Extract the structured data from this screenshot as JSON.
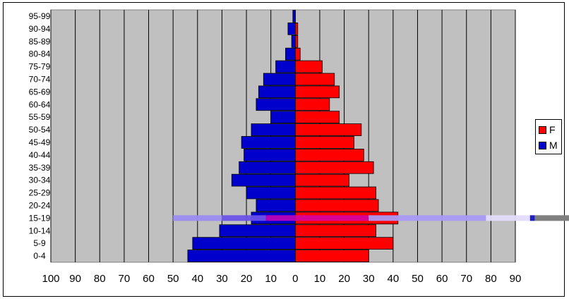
{
  "chart_data": {
    "type": "bar",
    "orientation": "horizontal",
    "title": "",
    "xlabel": "",
    "ylabel": "",
    "categories": [
      "0-4",
      "5-9",
      "10-14",
      "15-19",
      "20-24",
      "25-29",
      "30-34",
      "35-39",
      "40-44",
      "45-49",
      "50-54",
      "55-59",
      "60-64",
      "65-69",
      "70-74",
      "75-79",
      "80-84",
      "85-89",
      "90-94",
      "95-99"
    ],
    "series": [
      {
        "name": "F",
        "color": "#ff0000",
        "values": [
          30,
          40,
          33,
          42,
          34,
          33,
          22,
          32,
          28,
          24,
          27,
          18,
          14,
          18,
          16,
          11,
          2,
          1,
          1,
          0
        ]
      },
      {
        "name": "M",
        "color": "#0000cc",
        "values": [
          44,
          42,
          31,
          18,
          16,
          20,
          26,
          23,
          21,
          22,
          18,
          10,
          16,
          15,
          13,
          8,
          4,
          1.5,
          3,
          1
        ]
      }
    ],
    "xlim": [
      -100,
      90
    ],
    "x_ticks": [
      "100",
      "90",
      "80",
      "70",
      "60",
      "50",
      "40",
      "30",
      "20",
      "10",
      "0",
      "10",
      "20",
      "30",
      "40",
      "50",
      "60",
      "70",
      "80",
      "90"
    ],
    "grid": "vertical",
    "legend_position": "right"
  },
  "legend": {
    "items": [
      {
        "label": "F",
        "color": "#ff0000"
      },
      {
        "label": "M",
        "color": "#0000cc"
      }
    ]
  }
}
